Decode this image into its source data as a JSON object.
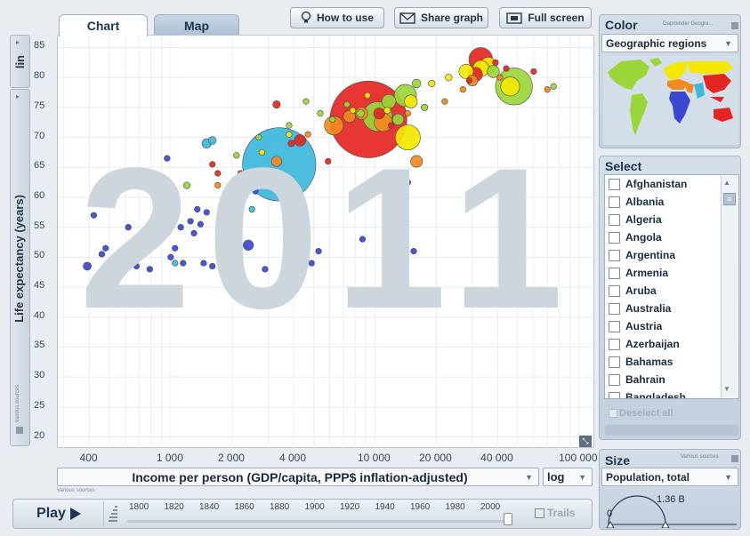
{
  "tabs": [
    {
      "label": "Chart",
      "active": true
    },
    {
      "label": "Map",
      "active": false
    }
  ],
  "toolbar": {
    "how_to_use": "How to use",
    "share_graph": "Share graph",
    "full_screen": "Full screen"
  },
  "y_axis": {
    "scale_label": "lin",
    "title": "Life expectancy (years)",
    "source_note": "Various sources",
    "ticks": [
      "85",
      "80",
      "75",
      "70",
      "65",
      "60",
      "55",
      "50",
      "45",
      "40",
      "35",
      "30",
      "25",
      "20"
    ]
  },
  "x_axis": {
    "title": "Income per person (GDP/capita, PPP$ inflation-adjusted)",
    "scale_label": "log",
    "source_note": "Various sources",
    "ticks": [
      "400",
      "1 000",
      "2 000",
      "4 000",
      "10 000",
      "20 000",
      "40 000",
      "100 000"
    ]
  },
  "watermark_year": "2011",
  "color_panel": {
    "title": "Color",
    "source_note": "Gapminder Geogra...",
    "selected": "Geographic regions"
  },
  "select_panel": {
    "title": "Select",
    "countries": [
      "Afghanistan",
      "Albania",
      "Algeria",
      "Angola",
      "Argentina",
      "Armenia",
      "Aruba",
      "Australia",
      "Austria",
      "Azerbaijan",
      "Bahamas",
      "Bahrain",
      "Bangladesh"
    ],
    "deselect_all": "Deselect all"
  },
  "size_panel": {
    "title": "Size",
    "source_note": "Various sources",
    "selected": "Population, total",
    "gauge_min": "0",
    "gauge_max": "1.36 B"
  },
  "player": {
    "play_label": "Play",
    "years": [
      "1800",
      "1820",
      "1840",
      "1860",
      "1880",
      "1900",
      "1920",
      "1940",
      "1960",
      "1980",
      "2000"
    ],
    "trails_label": "Trails"
  },
  "colors": {
    "sub_saharan_africa": "#3b46d1",
    "south_asia": "#3cb8dc",
    "east_asia_pacific": "#e42623",
    "americas": "#9bd53a",
    "europe_central_asia": "#f4e800",
    "middle_east_north_africa": "#f28a1d"
  },
  "chart_data": {
    "type": "scatter",
    "title": "",
    "xlabel": "Income per person (GDP/capita, PPP$ inflation-adjusted)",
    "ylabel": "Life expectancy (years)",
    "x_scale": "log",
    "y_scale": "linear",
    "xlim": [
      280,
      120000
    ],
    "ylim": [
      18,
      87
    ],
    "x_ticks": [
      400,
      1000,
      2000,
      4000,
      10000,
      20000,
      40000,
      100000
    ],
    "y_ticks": [
      20,
      25,
      30,
      35,
      40,
      45,
      50,
      55,
      60,
      65,
      70,
      75,
      80,
      85
    ],
    "series": [
      {
        "region": "Sub-Saharan Africa",
        "color": "#3b46d1",
        "points": [
          {
            "x": 390,
            "y": 48.5,
            "pop": 15
          },
          {
            "x": 420,
            "y": 57,
            "pop": 2
          },
          {
            "x": 480,
            "y": 51.5,
            "pop": 4
          },
          {
            "x": 460,
            "y": 50.5,
            "pop": 3
          },
          {
            "x": 540,
            "y": 61.5,
            "pop": 2
          },
          {
            "x": 560,
            "y": 48.5,
            "pop": 2
          },
          {
            "x": 620,
            "y": 55,
            "pop": 4
          },
          {
            "x": 680,
            "y": 48.5,
            "pop": 1
          },
          {
            "x": 760,
            "y": 52,
            "pop": 3
          },
          {
            "x": 790,
            "y": 48,
            "pop": 2
          },
          {
            "x": 830,
            "y": 54,
            "pop": 3
          },
          {
            "x": 850,
            "y": 59,
            "pop": 9
          },
          {
            "x": 900,
            "y": 57,
            "pop": 2
          },
          {
            "x": 930,
            "y": 54,
            "pop": 3
          },
          {
            "x": 960,
            "y": 66.5,
            "pop": 3
          },
          {
            "x": 1000,
            "y": 50,
            "pop": 3
          },
          {
            "x": 1050,
            "y": 51.5,
            "pop": 4
          },
          {
            "x": 1120,
            "y": 55,
            "pop": 2
          },
          {
            "x": 1150,
            "y": 49,
            "pop": 2
          },
          {
            "x": 1250,
            "y": 56,
            "pop": 4
          },
          {
            "x": 1300,
            "y": 54,
            "pop": 6
          },
          {
            "x": 1350,
            "y": 58,
            "pop": 8
          },
          {
            "x": 1400,
            "y": 55.5,
            "pop": 4
          },
          {
            "x": 1450,
            "y": 49,
            "pop": 2
          },
          {
            "x": 1500,
            "y": 57.5,
            "pop": 5
          },
          {
            "x": 1600,
            "y": 48.5,
            "pop": 1
          },
          {
            "x": 1750,
            "y": 50.5,
            "pop": 2
          },
          {
            "x": 1900,
            "y": 59,
            "pop": 3
          },
          {
            "x": 2100,
            "y": 51.5,
            "pop": 5
          },
          {
            "x": 2400,
            "y": 52,
            "pop": 24
          },
          {
            "x": 2900,
            "y": 48,
            "pop": 2
          },
          {
            "x": 3600,
            "y": 59,
            "pop": 2
          },
          {
            "x": 4900,
            "y": 49,
            "pop": 1
          },
          {
            "x": 5300,
            "y": 51,
            "pop": 3
          },
          {
            "x": 8700,
            "y": 53,
            "pop": 6
          },
          {
            "x": 14500,
            "y": 62.5,
            "pop": 1
          },
          {
            "x": 14000,
            "y": 53,
            "pop": 1
          },
          {
            "x": 15500,
            "y": 51,
            "pop": 1
          },
          {
            "x": 2600,
            "y": 61,
            "pop": 1
          }
        ]
      },
      {
        "region": "South Asia",
        "color": "#3cb8dc",
        "points": [
          {
            "x": 1050,
            "y": 49,
            "pop": 4
          },
          {
            "x": 1500,
            "y": 69,
            "pop": 20
          },
          {
            "x": 1600,
            "y": 69.5,
            "pop": 14
          },
          {
            "x": 3400,
            "y": 65.5,
            "pop": 1220
          },
          {
            "x": 2500,
            "y": 58,
            "pop": 2
          }
        ]
      },
      {
        "region": "East Asia & Pacific",
        "color": "#e42623",
        "points": [
          {
            "x": 1600,
            "y": 65.5,
            "pop": 6
          },
          {
            "x": 1700,
            "y": 64,
            "pop": 3
          },
          {
            "x": 2200,
            "y": 64,
            "pop": 2
          },
          {
            "x": 3300,
            "y": 75.5,
            "pop": 13
          },
          {
            "x": 4300,
            "y": 69.5,
            "pop": 30
          },
          {
            "x": 3900,
            "y": 69,
            "pop": 10
          },
          {
            "x": 5900,
            "y": 66,
            "pop": 2
          },
          {
            "x": 9300,
            "y": 73,
            "pop": 1340
          },
          {
            "x": 10500,
            "y": 74,
            "pop": 28
          },
          {
            "x": 12000,
            "y": 72,
            "pop": 3
          },
          {
            "x": 29000,
            "y": 79.5,
            "pop": 2
          },
          {
            "x": 31000,
            "y": 80.5,
            "pop": 48
          },
          {
            "x": 33000,
            "y": 83,
            "pop": 128
          },
          {
            "x": 39000,
            "y": 82.5,
            "pop": 2
          },
          {
            "x": 44000,
            "y": 81.5,
            "pop": 4
          },
          {
            "x": 60000,
            "y": 81,
            "pop": 1
          }
        ]
      },
      {
        "region": "Americas",
        "color": "#9bd53a",
        "points": [
          {
            "x": 1200,
            "y": 62,
            "pop": 10
          },
          {
            "x": 2100,
            "y": 67,
            "pop": 4
          },
          {
            "x": 2700,
            "y": 70,
            "pop": 3
          },
          {
            "x": 3800,
            "y": 72,
            "pop": 4
          },
          {
            "x": 4600,
            "y": 76,
            "pop": 6
          },
          {
            "x": 5400,
            "y": 74,
            "pop": 8
          },
          {
            "x": 6200,
            "y": 73,
            "pop": 6
          },
          {
            "x": 7300,
            "y": 75.5,
            "pop": 4
          },
          {
            "x": 8500,
            "y": 74,
            "pop": 14
          },
          {
            "x": 10300,
            "y": 73.5,
            "pop": 196
          },
          {
            "x": 11700,
            "y": 76,
            "pop": 45
          },
          {
            "x": 13000,
            "y": 73,
            "pop": 29
          },
          {
            "x": 14100,
            "y": 77,
            "pop": 112
          },
          {
            "x": 16000,
            "y": 79,
            "pop": 17
          },
          {
            "x": 17500,
            "y": 75,
            "pop": 10
          },
          {
            "x": 38000,
            "y": 81,
            "pop": 34
          },
          {
            "x": 48000,
            "y": 78.5,
            "pop": 311
          },
          {
            "x": 75000,
            "y": 78.5,
            "pop": 1
          }
        ]
      },
      {
        "region": "Europe & Central Asia",
        "color": "#f4e800",
        "points": [
          {
            "x": 2800,
            "y": 67.5,
            "pop": 5
          },
          {
            "x": 3800,
            "y": 70.5,
            "pop": 3
          },
          {
            "x": 7800,
            "y": 74.5,
            "pop": 7
          },
          {
            "x": 9200,
            "y": 77,
            "pop": 4
          },
          {
            "x": 11500,
            "y": 74.5,
            "pop": 10
          },
          {
            "x": 14500,
            "y": 70,
            "pop": 142
          },
          {
            "x": 15000,
            "y": 76,
            "pop": 38
          },
          {
            "x": 19000,
            "y": 79,
            "pop": 10
          },
          {
            "x": 23000,
            "y": 80,
            "pop": 11
          },
          {
            "x": 28000,
            "y": 81,
            "pop": 47
          },
          {
            "x": 33000,
            "y": 81.5,
            "pop": 60
          },
          {
            "x": 36000,
            "y": 82,
            "pop": 63
          },
          {
            "x": 46000,
            "y": 78.5,
            "pop": 82
          }
        ]
      },
      {
        "region": "Middle East & North Africa",
        "color": "#f28a1d",
        "points": [
          {
            "x": 1700,
            "y": 62,
            "pop": 3
          },
          {
            "x": 3300,
            "y": 66,
            "pop": 24
          },
          {
            "x": 4700,
            "y": 70.5,
            "pop": 4
          },
          {
            "x": 6300,
            "y": 72,
            "pop": 82
          },
          {
            "x": 7500,
            "y": 73.5,
            "pop": 33
          },
          {
            "x": 8600,
            "y": 74,
            "pop": 35
          },
          {
            "x": 11000,
            "y": 72.5,
            "pop": 75
          },
          {
            "x": 14500,
            "y": 74,
            "pop": 6
          },
          {
            "x": 16000,
            "y": 66,
            "pop": 32
          },
          {
            "x": 22000,
            "y": 76,
            "pop": 4
          },
          {
            "x": 27000,
            "y": 78,
            "pop": 2
          },
          {
            "x": 30000,
            "y": 79.5,
            "pop": 27
          },
          {
            "x": 41000,
            "y": 80,
            "pop": 3
          },
          {
            "x": 70000,
            "y": 78,
            "pop": 1
          }
        ]
      }
    ]
  }
}
